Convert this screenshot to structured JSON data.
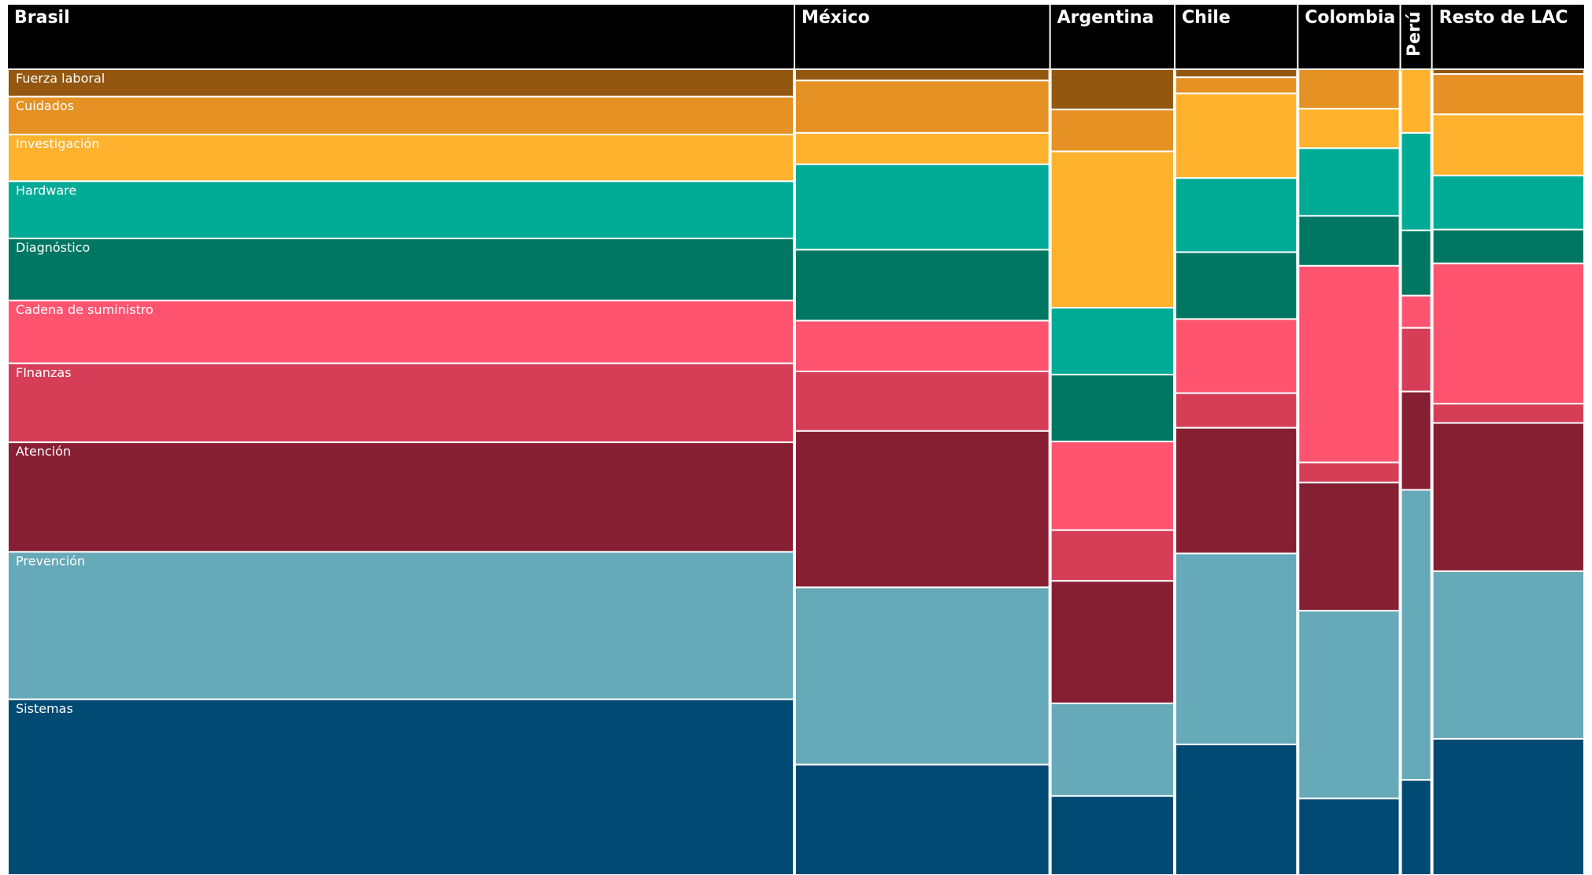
{
  "chart_data": {
    "type": "mosaic",
    "categories": [
      "Brasil",
      "México",
      "Argentina",
      "Chile",
      "Colombia",
      "Perú",
      "Resto de LAC"
    ],
    "widths": [
      49.9,
      16.2,
      7.9,
      7.8,
      6.5,
      2.0,
      9.7
    ],
    "series": [
      {
        "name": "Fuerza laboral",
        "color": "#93570f",
        "values": [
          3.4,
          1.4,
          5.0,
          1.0,
          0,
          0,
          0.6
        ]
      },
      {
        "name": "Cuidados",
        "color": "#e59124",
        "values": [
          4.7,
          6.5,
          5.2,
          2.0,
          4.9,
          0,
          5.0
        ]
      },
      {
        "name": "Investigación",
        "color": "#ffb22e",
        "values": [
          5.8,
          3.9,
          19.4,
          10.5,
          4.9,
          7.9,
          7.6
        ]
      },
      {
        "name": "Hardware",
        "color": "#00ab96",
        "values": [
          7.1,
          10.6,
          8.3,
          9.2,
          8.4,
          12.1,
          6.7
        ]
      },
      {
        "name": "Diagnóstico",
        "color": "#007762",
        "values": [
          7.7,
          8.8,
          8.3,
          8.3,
          6.2,
          8.1,
          4.2
        ]
      },
      {
        "name": "Cadena de suministro",
        "color": "#ff5470",
        "values": [
          7.8,
          6.3,
          11.0,
          9.2,
          24.4,
          4.0,
          17.4
        ]
      },
      {
        "name": "FInanzas",
        "color": "#d63e58",
        "values": [
          9.8,
          7.4,
          6.3,
          4.3,
          2.5,
          7.9,
          2.4
        ]
      },
      {
        "name": "Atención",
        "color": "#871f33",
        "values": [
          13.6,
          19.4,
          15.2,
          15.6,
          15.9,
          12.2,
          18.4
        ]
      },
      {
        "name": "Prevención",
        "color": "#66a9b9",
        "values": [
          18.3,
          22.0,
          11.5,
          23.7,
          23.3,
          36.0,
          20.8
        ]
      },
      {
        "name": "Sistemas",
        "color": "#004a73",
        "values": [
          21.8,
          13.7,
          9.8,
          16.2,
          9.5,
          11.8,
          16.9
        ]
      }
    ]
  }
}
